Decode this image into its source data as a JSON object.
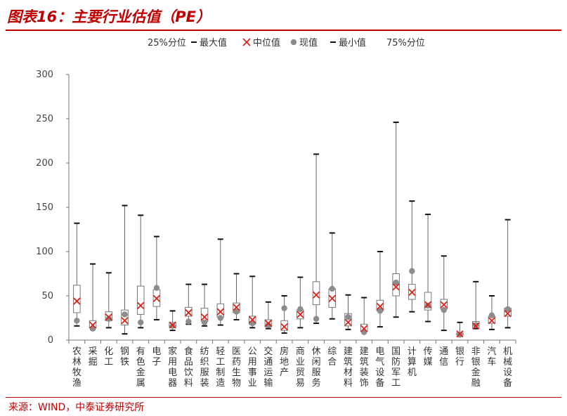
{
  "figure": {
    "title": "图表16：主要行业估值（PE）",
    "source": "来源：WIND，中泰证券研究所"
  },
  "chart_data": {
    "type": "boxplot",
    "title": "",
    "xlabel": "",
    "ylabel": "",
    "ylim": [
      0,
      300
    ],
    "yticks": [
      0,
      50,
      100,
      150,
      200,
      250,
      300
    ],
    "grid": false,
    "legend_position": "top",
    "legend": [
      "25%分位",
      "最大值",
      "中位值",
      "现值",
      "最小值",
      "75%分位"
    ],
    "categories": [
      "农林牧渔",
      "采掘",
      "化工",
      "钢铁",
      "有色金属",
      "电子",
      "家用电器",
      "食品饮料",
      "纺织服装",
      "轻工制造",
      "医药生物",
      "公用事业",
      "交通运输",
      "房地产",
      "商业贸易",
      "休闲服务",
      "综合",
      "建筑材料",
      "建筑装饰",
      "电气设备",
      "国防军工",
      "计算机",
      "传媒",
      "通信",
      "银行",
      "非银金融",
      "汽车",
      "机械设备"
    ],
    "series": [
      {
        "name": "最小值",
        "values": [
          16,
          12,
          14,
          7,
          14,
          23,
          11,
          18,
          16,
          17,
          23,
          14,
          13,
          8,
          14,
          19,
          24,
          12,
          9,
          15,
          26,
          32,
          21,
          11,
          5,
          13,
          12,
          14
        ]
      },
      {
        "name": "25%分位",
        "values": [
          31,
          14,
          22,
          17,
          29,
          38,
          15,
          27,
          21,
          26,
          31,
          18,
          15,
          11,
          24,
          40,
          37,
          16,
          10,
          33,
          50,
          46,
          34,
          35,
          6,
          14,
          19,
          27
        ]
      },
      {
        "name": "中位值",
        "values": [
          44,
          17,
          26,
          22,
          39,
          47,
          17,
          31,
          26,
          32,
          37,
          23,
          19,
          15,
          29,
          51,
          47,
          20,
          13,
          38,
          60,
          54,
          40,
          40,
          7,
          16,
          22,
          30
        ]
      },
      {
        "name": "75%分位",
        "values": [
          62,
          22,
          32,
          34,
          61,
          57,
          20,
          37,
          36,
          41,
          42,
          27,
          23,
          22,
          34,
          66,
          58,
          30,
          18,
          45,
          75,
          63,
          54,
          46,
          8,
          21,
          27,
          36
        ]
      },
      {
        "name": "最大值",
        "values": [
          132,
          86,
          76,
          152,
          141,
          117,
          33,
          63,
          63,
          114,
          75,
          72,
          43,
          50,
          71,
          210,
          121,
          51,
          48,
          100,
          246,
          157,
          142,
          95,
          20,
          66,
          50,
          136
        ]
      },
      {
        "name": "现值",
        "values": [
          22,
          13,
          24,
          29,
          20,
          59,
          16,
          21,
          20,
          25,
          32,
          19,
          17,
          36,
          35,
          24,
          58,
          26,
          9,
          33,
          65,
          78,
          39,
          34,
          6,
          17,
          28,
          35
        ]
      }
    ]
  }
}
